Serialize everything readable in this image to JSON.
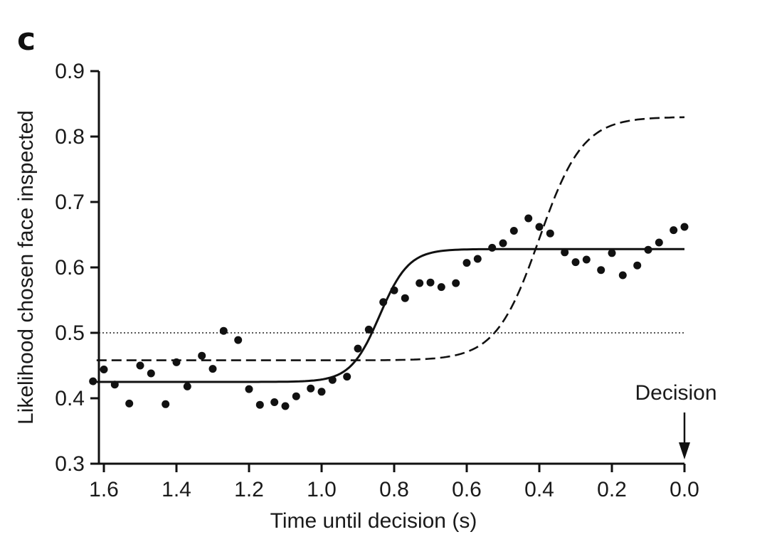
{
  "chart_data": {
    "type": "scatter",
    "panel_label": "c",
    "title": "",
    "xlabel": "Time until decision (s)",
    "ylabel": "Likelihood chosen face inspected",
    "xlim": [
      1.62,
      0.0
    ],
    "ylim": [
      0.3,
      0.9
    ],
    "x_reversed": true,
    "x_ticks": [
      1.6,
      1.4,
      1.2,
      1.0,
      0.8,
      0.6,
      0.4,
      0.2,
      0.0
    ],
    "x_tick_labels": [
      "1.6",
      "1.4",
      "1.2",
      "1.0",
      "0.8",
      "0.6",
      "0.4",
      "0.2",
      "0.0"
    ],
    "y_ticks": [
      0.3,
      0.4,
      0.5,
      0.6,
      0.7,
      0.8,
      0.9
    ],
    "y_tick_labels": [
      "0.3",
      "0.4",
      "0.5",
      "0.6",
      "0.7",
      "0.8",
      "0.9"
    ],
    "grid": false,
    "points": {
      "x": [
        1.63,
        1.6,
        1.57,
        1.53,
        1.5,
        1.47,
        1.43,
        1.4,
        1.37,
        1.33,
        1.3,
        1.27,
        1.23,
        1.2,
        1.17,
        1.13,
        1.1,
        1.07,
        1.03,
        1.0,
        0.97,
        0.93,
        0.9,
        0.87,
        0.83,
        0.8,
        0.77,
        0.73,
        0.7,
        0.67,
        0.63,
        0.6,
        0.57,
        0.53,
        0.5,
        0.47,
        0.43,
        0.4,
        0.37,
        0.33,
        0.3,
        0.27,
        0.23,
        0.2,
        0.17,
        0.13,
        0.1,
        0.07,
        0.03,
        0.0
      ],
      "y": [
        0.426,
        0.444,
        0.421,
        0.392,
        0.45,
        0.438,
        0.391,
        0.455,
        0.418,
        0.465,
        0.445,
        0.503,
        0.489,
        0.414,
        0.39,
        0.394,
        0.388,
        0.403,
        0.415,
        0.41,
        0.428,
        0.433,
        0.476,
        0.505,
        0.547,
        0.565,
        0.553,
        0.576,
        0.577,
        0.57,
        0.576,
        0.607,
        0.613,
        0.63,
        0.637,
        0.656,
        0.675,
        0.662,
        0.652,
        0.623,
        0.608,
        0.612,
        0.596,
        0.622,
        0.588,
        0.603,
        0.627,
        0.638,
        0.657,
        0.662
      ]
    },
    "solid_fit": {
      "style": "solid",
      "low": 0.425,
      "high": 0.628,
      "midpoint": 0.84,
      "scale": 0.04
    },
    "dashed_fit": {
      "style": "dashed",
      "low": 0.458,
      "high": 0.83,
      "midpoint": 0.4,
      "scale": 0.06
    },
    "reference_line": {
      "style": "dotted",
      "y": 0.5
    },
    "annotation": {
      "text": "Decision",
      "x": 0.0
    }
  }
}
